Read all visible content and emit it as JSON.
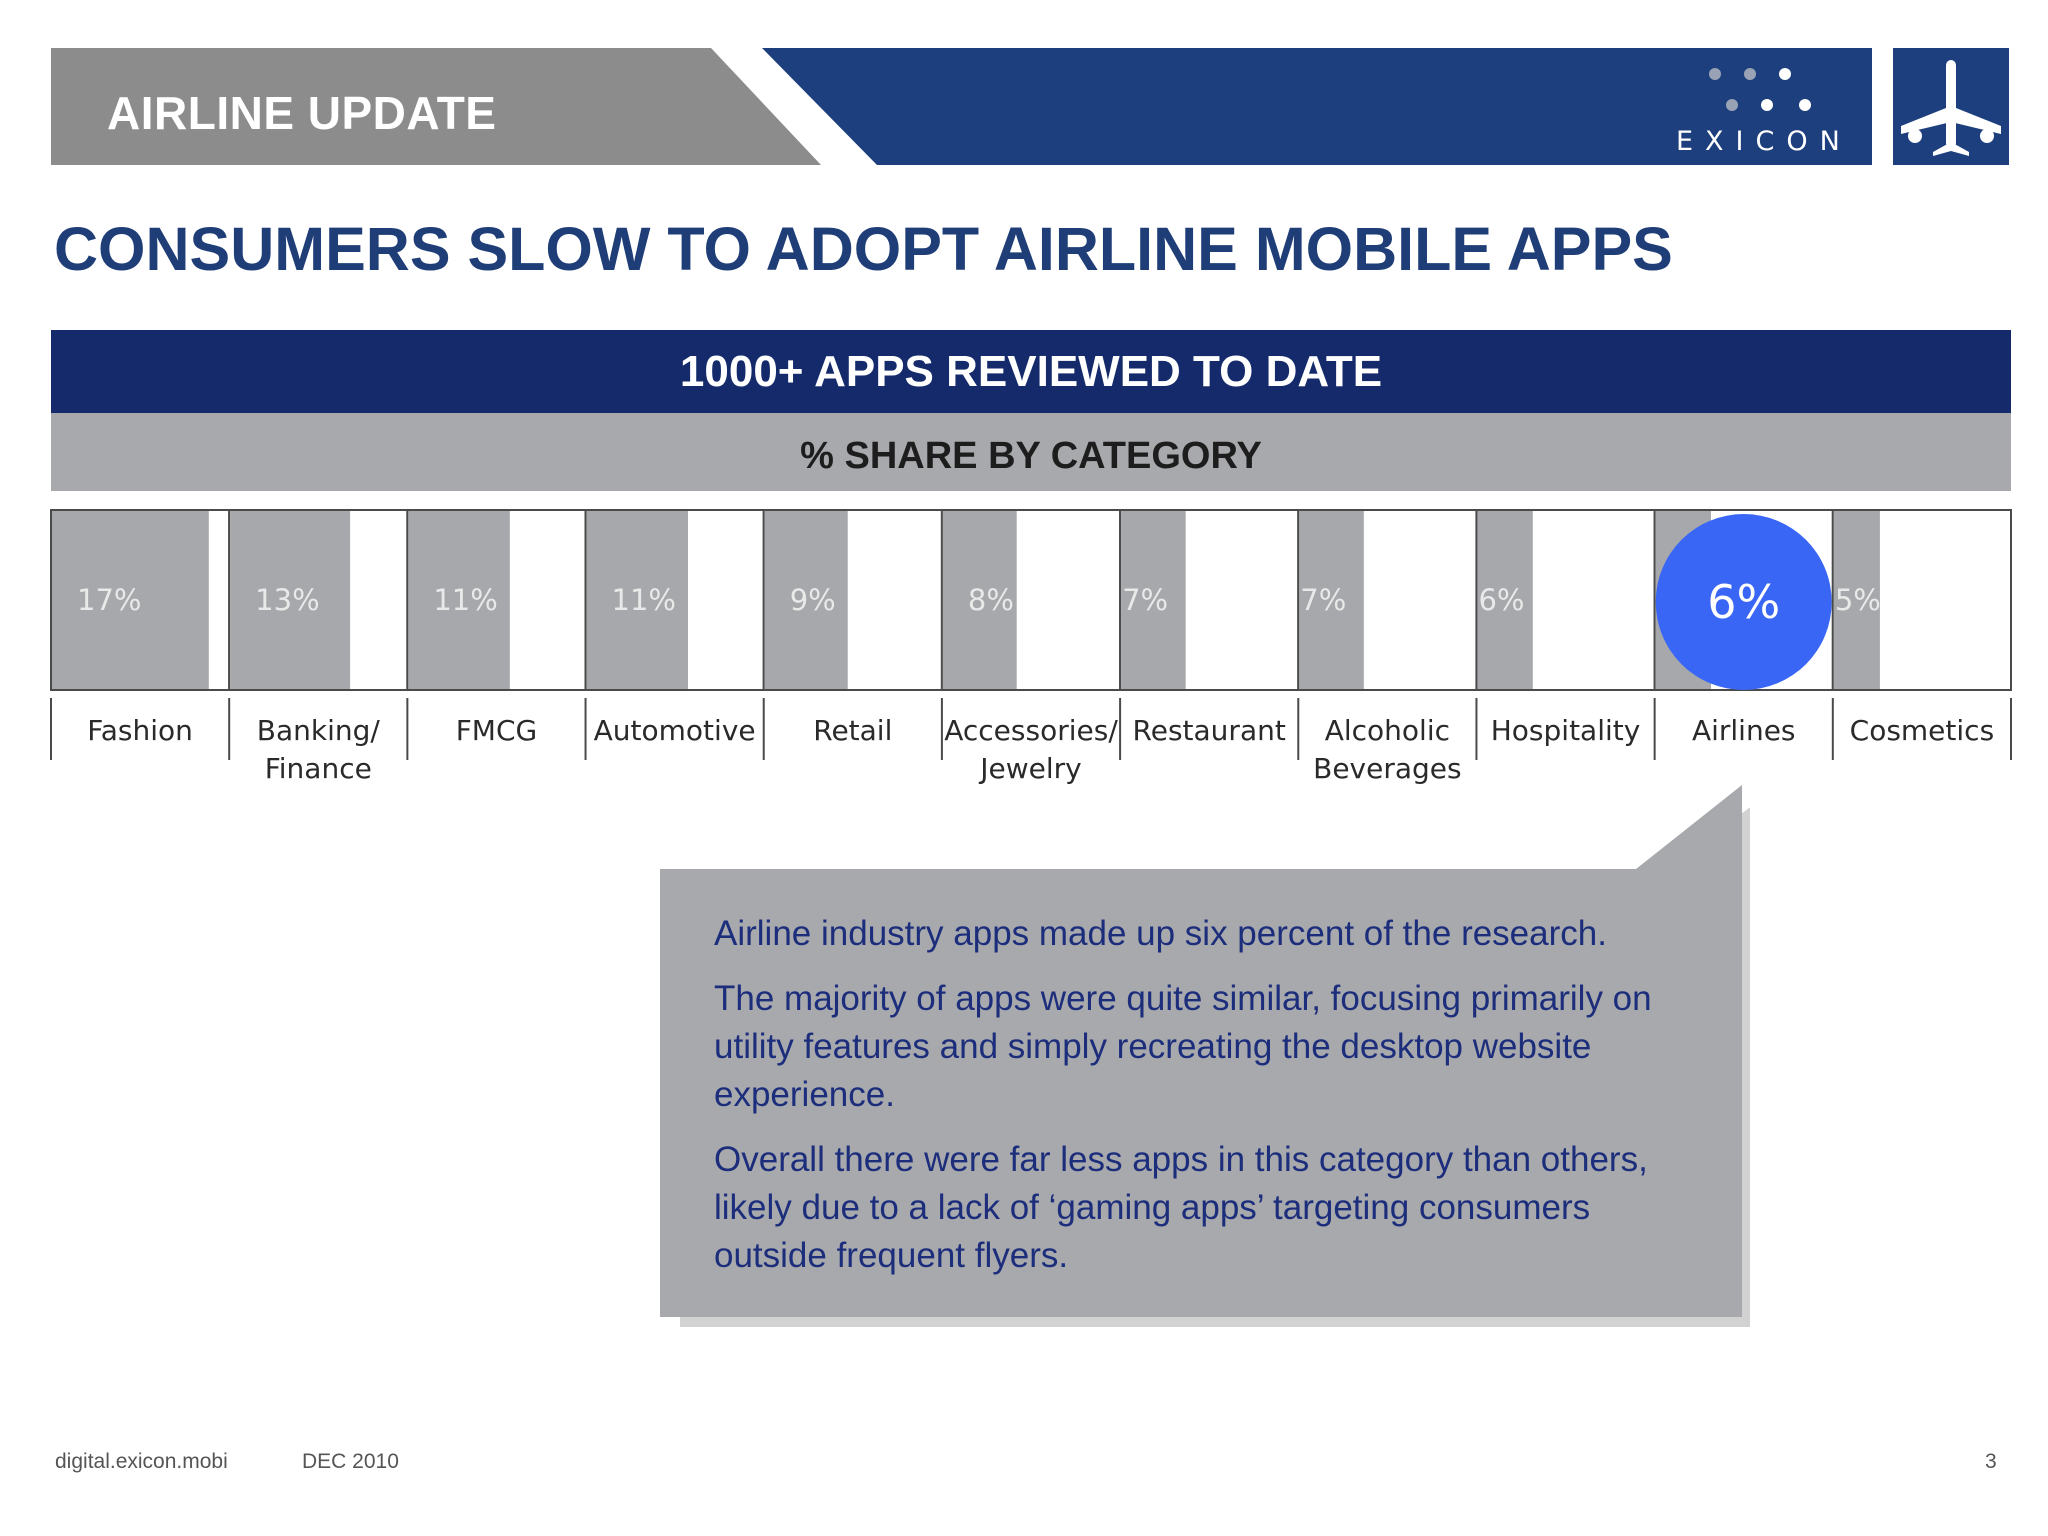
{
  "header": {
    "title": "AIRLINE UPDATE",
    "logo_text": "EXICON",
    "plane_icon": "airplane-icon"
  },
  "slide": {
    "title": "CONSUMERS SLOW TO ADOPT AIRLINE MOBILE APPS",
    "reviewed_banner": "1000+ APPS REVIEWED TO DATE",
    "share_banner": "% SHARE BY CATEGORY"
  },
  "chart_data": {
    "type": "bar",
    "orientation": "horizontal-in-cells",
    "title": "% SHARE BY CATEGORY",
    "categories": [
      "Fashion",
      "Banking/\nFinance",
      "FMCG",
      "Automotive",
      "Retail",
      "Accessories/\nJewelry",
      "Restaurant",
      "Alcoholic\nBeverages",
      "Hospitality",
      "Airlines",
      "Cosmetics"
    ],
    "values": [
      17,
      13,
      11,
      11,
      9,
      8,
      7,
      7,
      6,
      6,
      5
    ],
    "data_labels": [
      "17%",
      "13%",
      "11%",
      "11%",
      "9%",
      "8%",
      "7%",
      "7%",
      "6%",
      "6%",
      "5%"
    ],
    "unit": "%",
    "highlight_category": "Airlines",
    "bar_color": "#a6a8ab",
    "highlight_color": "#3a66f5"
  },
  "callout": {
    "paragraphs": [
      "Airline industry apps made up six percent of the research.",
      "The majority of apps were quite similar, focusing primarily on utility features and simply recreating the desktop website experience.",
      "Overall there were far less apps in this category than others, likely due to a lack of ‘gaming apps’ targeting consumers outside frequent flyers."
    ]
  },
  "footer": {
    "url": "digital.exicon.mobi",
    "date": "DEC 2010",
    "page_number": "3"
  }
}
